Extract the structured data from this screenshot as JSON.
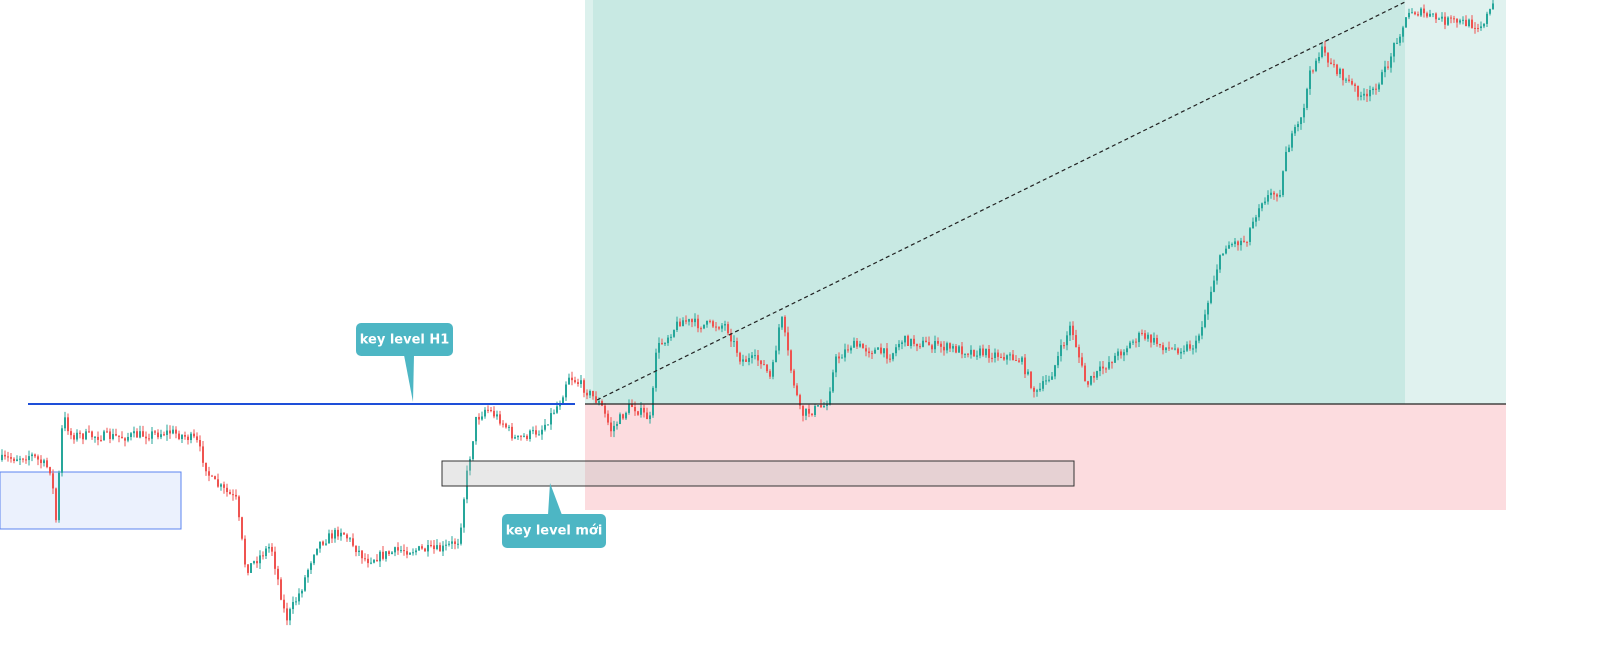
{
  "annotations": {
    "key_level_h1": "key level H1",
    "key_level_new": "key level mới"
  }
}
